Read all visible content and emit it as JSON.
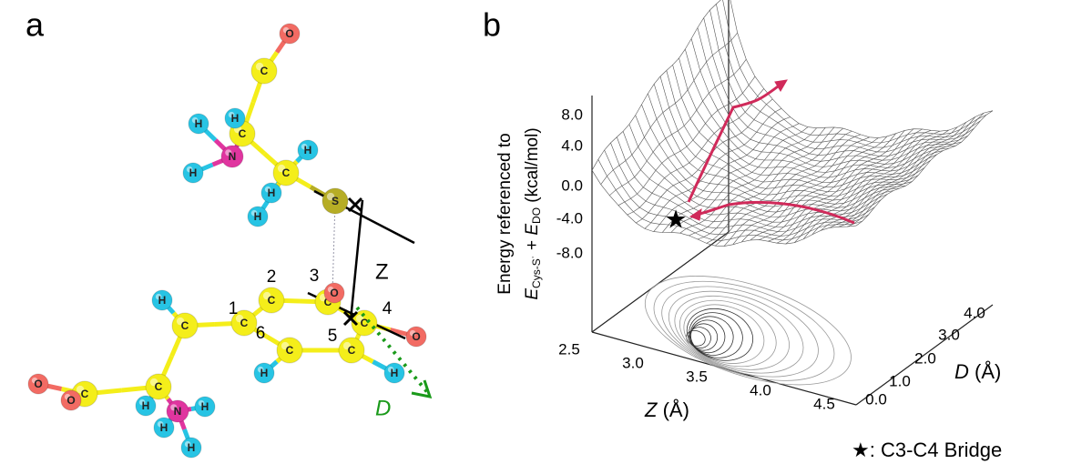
{
  "panel_a": {
    "label": "a",
    "atoms": [
      "O",
      "C",
      "C",
      "H",
      "H",
      "N",
      "H",
      "C",
      "H",
      "H",
      "H",
      "S",
      "C",
      "C",
      "C",
      "C",
      "C",
      "C",
      "H",
      "H",
      "O",
      "O",
      "C",
      "H",
      "C",
      "H",
      "N",
      "H",
      "H",
      "H",
      "C",
      "O",
      "O"
    ],
    "ring_numbers": [
      "1",
      "2",
      "3",
      "4",
      "5",
      "6"
    ],
    "z_label": "Z",
    "d_label": "D"
  },
  "panel_b": {
    "label": "b",
    "y_axis_title": {
      "line1": "Energy referenced to",
      "e1": "E",
      "sub1": "Cys-S˙",
      "plus": " + ",
      "e2": "E",
      "sub2": "DO",
      "unit": " (kcal/mol)"
    },
    "energy_ticks": [
      "8.0",
      "4.0",
      "0.0",
      "-4.0",
      "-8.0"
    ],
    "z_ticks": [
      "2.5",
      "3.0",
      "3.5",
      "4.0",
      "4.5"
    ],
    "d_ticks": [
      "0.0",
      "1.0",
      "2.0",
      "3.0",
      "4.0"
    ],
    "z_axis_title": {
      "symbol": "Z",
      "unit": " (Å)"
    },
    "d_axis_title": {
      "symbol": "D",
      "unit": " (Å)"
    },
    "legend": {
      "symbol": "★",
      "text": ": C3-C4 Bridge"
    }
  }
}
